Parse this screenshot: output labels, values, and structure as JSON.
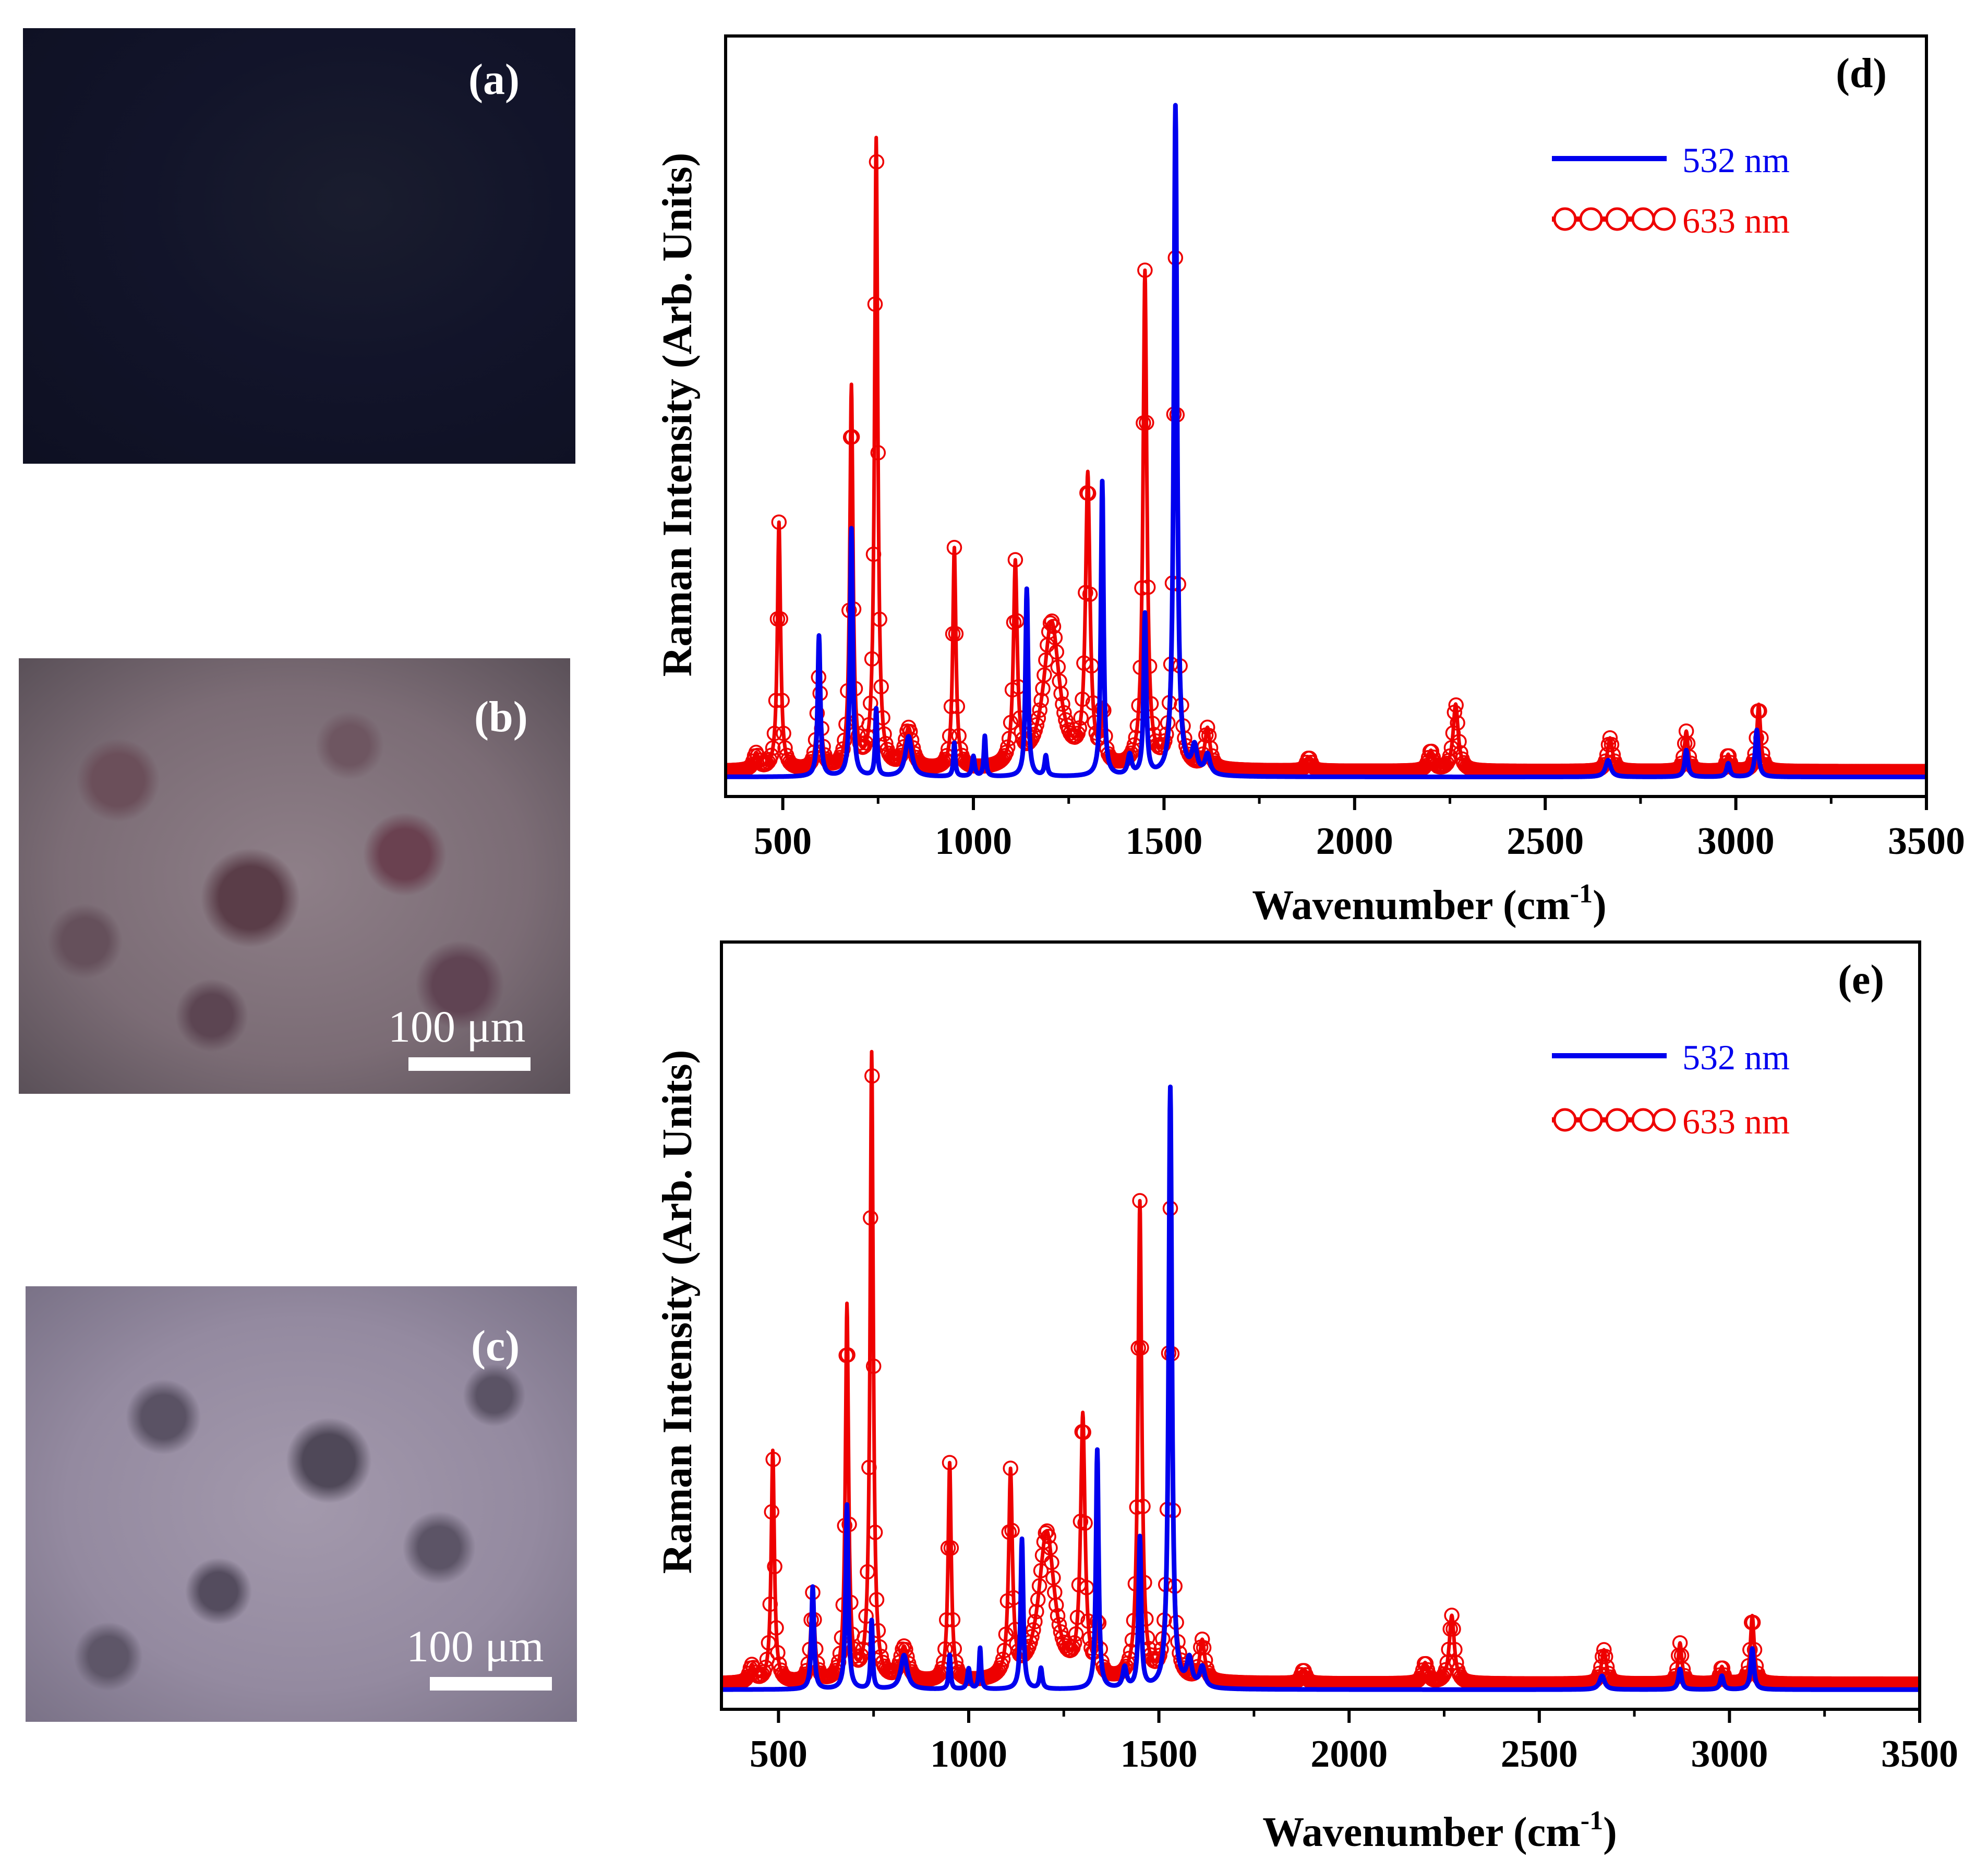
{
  "photos": {
    "a": {
      "label": "(a)"
    },
    "b": {
      "label": "(b)",
      "scale": "100 μm"
    },
    "c": {
      "label": "(c)",
      "scale": "100 μm"
    }
  },
  "colors": {
    "blue": "#0000ee",
    "red": "#ee0000"
  },
  "chart_data": [
    {
      "type": "line",
      "panel_label": "(d)",
      "xlabel": "Wavenumber (cm",
      "xlabel_sup": "-1",
      "xlabel_end": ")",
      "ylabel": "Raman Intensity (Arb. Units)",
      "xlim": [
        350,
        3500
      ],
      "ylim": [
        0,
        100
      ],
      "xticks": [
        500,
        1000,
        1500,
        2000,
        2500,
        3000,
        3500
      ],
      "legend_position": "top-right",
      "baseline": {
        "532 nm": 1.2,
        "633 nm": 2.0
      },
      "series": [
        {
          "name": "532 nm",
          "style": "line",
          "color": "#0000ee",
          "peaks": [
            [
              595,
              21,
              4
            ],
            [
              680,
              37,
              4
            ],
            [
              745,
              10,
              3
            ],
            [
              830,
              6,
              10
            ],
            [
              950,
              5,
              3
            ],
            [
              1000,
              3,
              4
            ],
            [
              1030,
              6,
              3
            ],
            [
              1140,
              28,
              4
            ],
            [
              1190,
              3,
              4
            ],
            [
              1338,
              44,
              4
            ],
            [
              1410,
              3,
              6
            ],
            [
              1450,
              24,
              4
            ],
            [
              1530,
              100,
              5
            ],
            [
              1580,
              4,
              8
            ],
            [
              1614,
              3,
              8
            ],
            [
              2665,
              2.5,
              8
            ],
            [
              2870,
              4,
              5
            ],
            [
              2980,
              2,
              5
            ],
            [
              3055,
              7,
              5
            ]
          ]
        },
        {
          "name": "633 nm",
          "style": "line-circle",
          "color": "#ee0000",
          "peaks": [
            [
              430,
              2.5,
              8
            ],
            [
              490,
              37,
              5
            ],
            [
              595,
              14,
              6
            ],
            [
              680,
              57,
              5
            ],
            [
              745,
              94,
              5
            ],
            [
              830,
              6,
              12
            ],
            [
              950,
              33,
              5
            ],
            [
              1110,
              30,
              6
            ],
            [
              1205,
              22,
              25
            ],
            [
              1300,
              43,
              7
            ],
            [
              1340,
              8,
              5
            ],
            [
              1450,
              74,
              6
            ],
            [
              1530,
              76,
              6
            ],
            [
              1614,
              6,
              8
            ],
            [
              1880,
              2,
              8
            ],
            [
              2200,
              3,
              8
            ],
            [
              2265,
              10,
              8
            ],
            [
              2670,
              5,
              8
            ],
            [
              2870,
              6,
              6
            ],
            [
              2980,
              2.5,
              6
            ],
            [
              3060,
              10,
              6
            ]
          ]
        }
      ]
    },
    {
      "type": "line",
      "panel_label": "(e)",
      "xlabel": "Wavenumber (cm",
      "xlabel_sup": "-1",
      "xlabel_end": ")",
      "ylabel": "Raman Intensity (Arb. Units)",
      "xlim": [
        350,
        3500
      ],
      "ylim": [
        0,
        100
      ],
      "xticks": [
        500,
        1000,
        1500,
        2000,
        2500,
        3000,
        3500
      ],
      "legend_position": "top-right",
      "baseline": {
        "532 nm": 1.2,
        "633 nm": 2.0
      },
      "series": [
        {
          "name": "532 nm",
          "style": "line",
          "color": "#0000ee",
          "peaks": [
            [
              590,
              15,
              4
            ],
            [
              680,
              27,
              4
            ],
            [
              745,
              10,
              3
            ],
            [
              830,
              5,
              10
            ],
            [
              950,
              5,
              3
            ],
            [
              1000,
              3,
              4
            ],
            [
              1030,
              6,
              3
            ],
            [
              1140,
              22,
              4
            ],
            [
              1190,
              3,
              4
            ],
            [
              1338,
              35,
              4
            ],
            [
              1410,
              3,
              6
            ],
            [
              1450,
              22,
              4
            ],
            [
              1530,
              88,
              5
            ],
            [
              1580,
              4,
              8
            ],
            [
              1614,
              3,
              8
            ],
            [
              2665,
              2,
              8
            ],
            [
              2870,
              3,
              5
            ],
            [
              2980,
              2,
              5
            ],
            [
              3060,
              6,
              5
            ]
          ]
        },
        {
          "name": "633 nm",
          "style": "line-circle",
          "color": "#ee0000",
          "peaks": [
            [
              430,
              2.5,
              8
            ],
            [
              485,
              34,
              5
            ],
            [
              590,
              13,
              6
            ],
            [
              680,
              55,
              5
            ],
            [
              745,
              92,
              5
            ],
            [
              830,
              5,
              12
            ],
            [
              950,
              32,
              5
            ],
            [
              1110,
              30,
              6
            ],
            [
              1205,
              22,
              25
            ],
            [
              1300,
              38,
              7
            ],
            [
              1340,
              8,
              5
            ],
            [
              1450,
              70,
              6
            ],
            [
              1530,
              69,
              6
            ],
            [
              1614,
              6,
              8
            ],
            [
              1880,
              2,
              8
            ],
            [
              2200,
              3,
              8
            ],
            [
              2270,
              10,
              8
            ],
            [
              2670,
              5,
              8
            ],
            [
              2870,
              6,
              6
            ],
            [
              2980,
              2.5,
              6
            ],
            [
              3060,
              10,
              6
            ]
          ]
        }
      ]
    }
  ]
}
